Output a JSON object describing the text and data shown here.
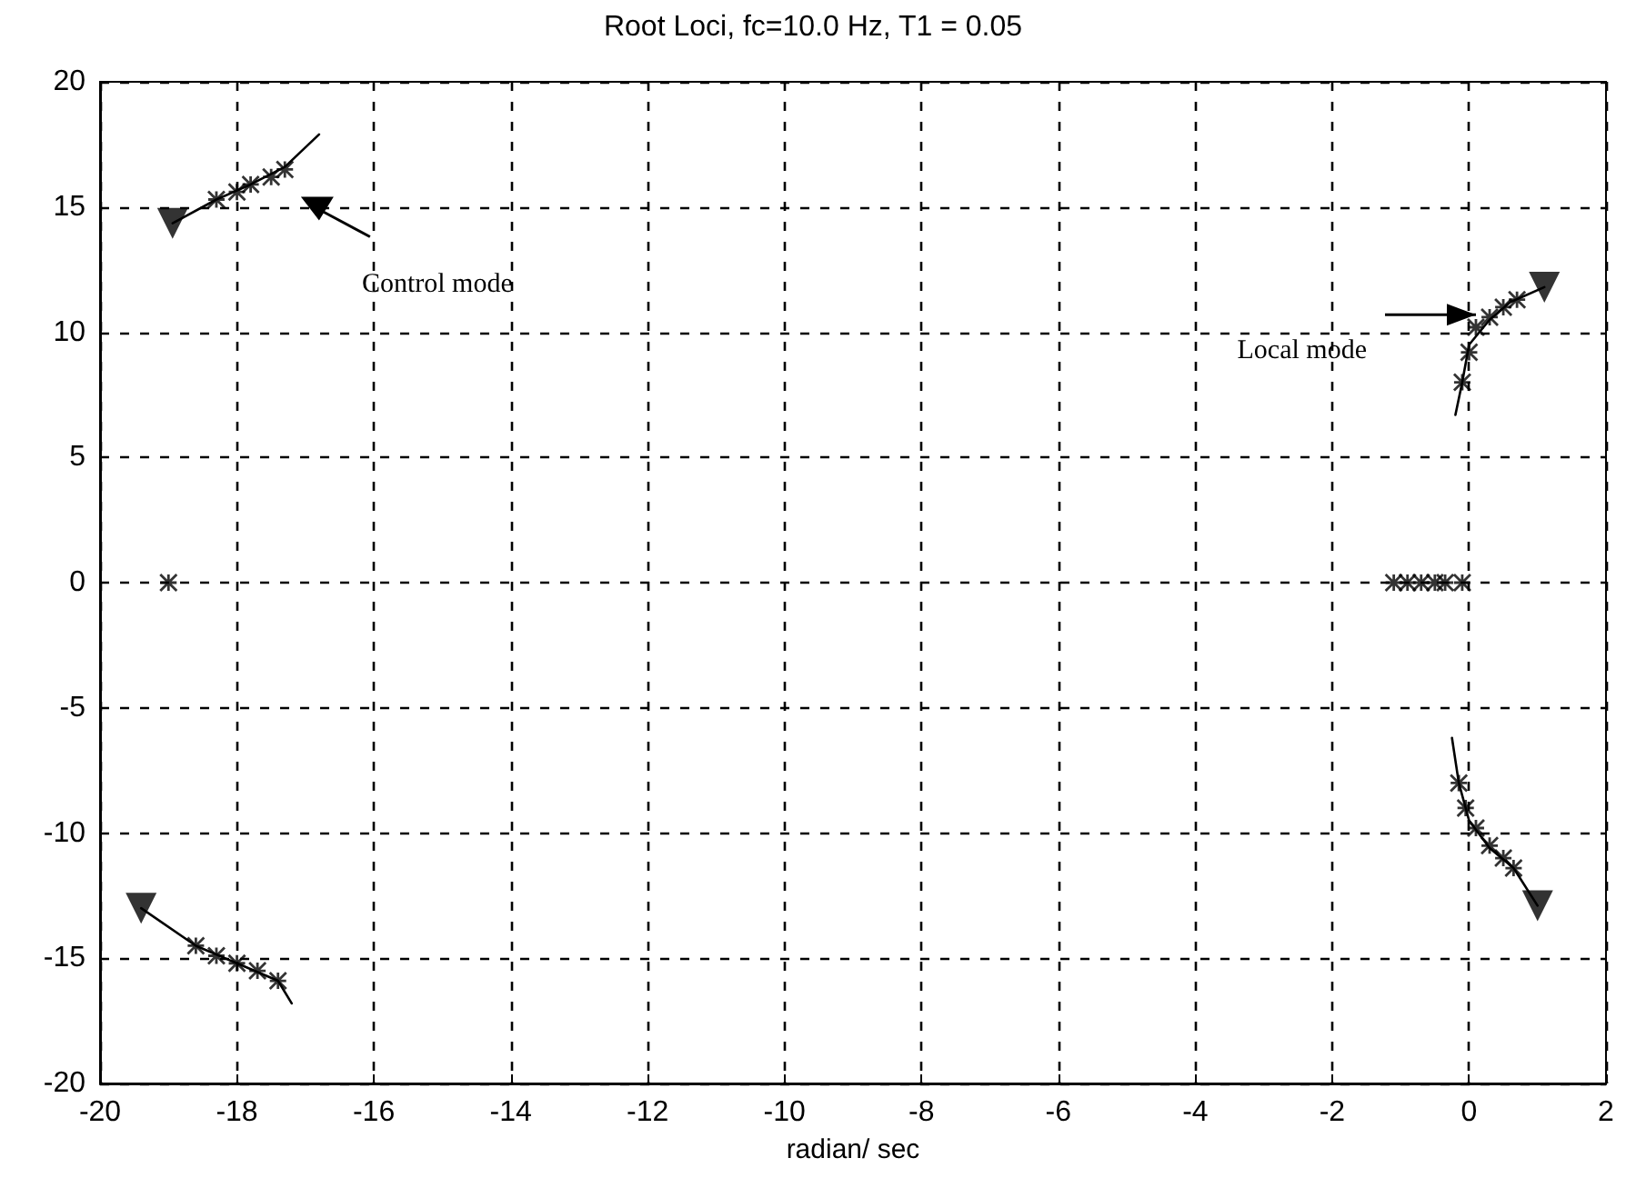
{
  "chart_data": {
    "type": "scatter",
    "title": "Root Loci, fc=10.0 Hz, T1 = 0.05",
    "xlabel": "radian/ sec",
    "xlim": [
      -20,
      2
    ],
    "xticks": [
      -20,
      -18,
      -16,
      -14,
      -12,
      -10,
      -8,
      -6,
      -4,
      -2,
      0,
      2
    ],
    "ylim": [
      -20,
      20
    ],
    "yticks": [
      -20,
      -15,
      -10,
      -5,
      0,
      5,
      10,
      15,
      20
    ],
    "grid": true,
    "annotations": [
      {
        "text": "Control mode",
        "x": -16.8,
        "y": 14.9
      },
      {
        "text": "Local mode",
        "x": 0.1,
        "y": 10.7
      }
    ],
    "series": [
      {
        "type": "line",
        "marker": "none",
        "color": "#000000",
        "x": [
          -18.94,
          -18.3,
          -17.8,
          -17.3,
          -16.8
        ],
        "values": [
          14.35,
          15.3,
          15.9,
          16.6,
          17.9
        ]
      },
      {
        "type": "line",
        "marker": "none",
        "color": "#000000",
        "x": [
          -0.2,
          -0.1,
          0.0,
          0.3,
          0.6,
          1.1
        ],
        "values": [
          6.7,
          8.0,
          9.5,
          10.5,
          11.2,
          11.8
        ]
      },
      {
        "type": "line",
        "marker": "none",
        "color": "#000000",
        "x": [
          -0.25,
          -0.15,
          0.0,
          0.3,
          0.65,
          1.0
        ],
        "values": [
          -6.2,
          -8.0,
          -9.5,
          -10.6,
          -11.4,
          -12.9
        ]
      },
      {
        "type": "line",
        "marker": "none",
        "color": "#000000",
        "x": [
          -19.4,
          -18.6,
          -18.0,
          -17.4,
          -17.2
        ],
        "values": [
          -13.0,
          -14.5,
          -15.2,
          -15.9,
          -16.8
        ]
      },
      {
        "marker": "cross",
        "color": "#000000",
        "x": [
          -18.3,
          -18.0,
          -17.8,
          -17.5,
          -17.3,
          -0.1,
          0.0,
          0.1,
          0.3,
          0.5,
          0.7,
          -0.15,
          -0.05,
          0.1,
          0.3,
          0.5,
          0.65,
          -18.6,
          -18.3,
          -18.0,
          -17.7,
          -17.4,
          -1.1,
          -0.9,
          -0.7,
          -0.5,
          -0.35,
          -0.1,
          -19.0
        ],
        "values": [
          15.3,
          15.6,
          15.9,
          16.2,
          16.5,
          8.0,
          9.2,
          10.2,
          10.6,
          11.0,
          11.3,
          -8.0,
          -9.0,
          -9.8,
          -10.5,
          -11.0,
          -11.4,
          -14.5,
          -14.9,
          -15.2,
          -15.5,
          -15.9,
          0,
          0,
          0,
          0,
          0,
          0,
          0
        ]
      },
      {
        "marker": "triangle",
        "color": "#000000",
        "x": [
          -18.94,
          1.1,
          1.0,
          -19.4
        ],
        "values": [
          14.35,
          11.8,
          -12.9,
          -13.0
        ]
      }
    ]
  }
}
